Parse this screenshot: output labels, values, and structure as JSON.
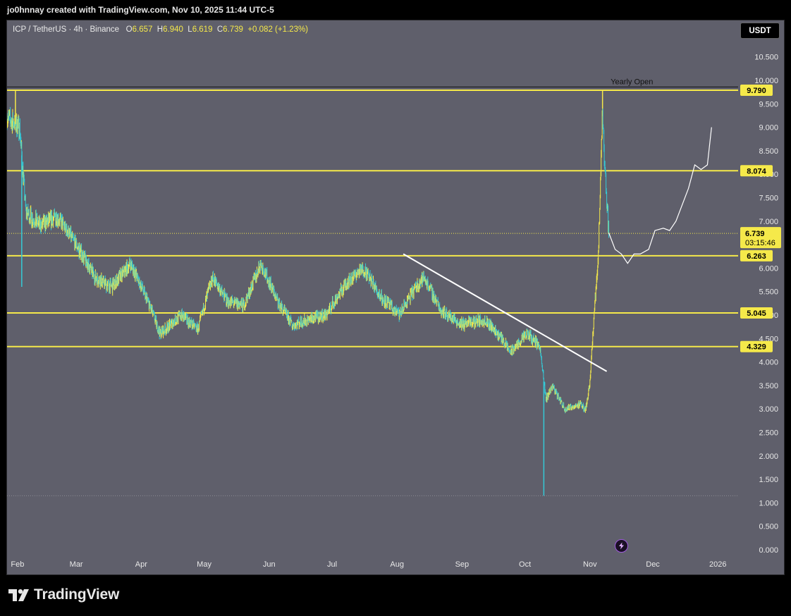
{
  "header": {
    "attribution": "jo0hnnay created with TradingView.com, Nov 10, 2025 11:44 UTC-5"
  },
  "legend": {
    "symbol": "ICP / TetherUS · 4h · Binance",
    "o_label": "O",
    "o": "6.657",
    "h_label": "H",
    "h": "6.940",
    "l_label": "L",
    "l": "6.619",
    "c_label": "C",
    "c": "6.739",
    "change": "+0.082 (+1.23%)"
  },
  "unit_button": "USDT",
  "branding": {
    "logo_text": "TradingView"
  },
  "icons": {
    "flash": "lightning-icon"
  },
  "colors": {
    "background": "#5f5f6b",
    "level_line": "#f5e94a",
    "candle_up": "#f5e94a",
    "candle_down": "#35c9d6",
    "trendline": "#ffffff",
    "projection": "#ffffff"
  },
  "chart_data": {
    "type": "candlestick",
    "symbol": "ICP / TetherUS",
    "interval": "4h",
    "exchange": "Binance",
    "ylim": [
      0,
      11
    ],
    "y_ticks": [
      "0.000",
      "0.500",
      "1.000",
      "1.500",
      "2.000",
      "2.500",
      "3.000",
      "3.500",
      "4.000",
      "4.500",
      "5.000",
      "5.500",
      "6.000",
      "6.500",
      "7.000",
      "7.500",
      "8.000",
      "8.500",
      "9.000",
      "9.500",
      "10.000",
      "10.500"
    ],
    "y_tick_values": [
      0,
      0.5,
      1,
      1.5,
      2,
      2.5,
      3,
      3.5,
      4,
      4.5,
      5,
      5.5,
      6,
      6.5,
      7,
      7.5,
      8,
      8.5,
      9,
      9.5,
      10,
      10.5
    ],
    "x_ticks": [
      "Feb",
      "Mar",
      "Apr",
      "May",
      "Jun",
      "Jul",
      "Aug",
      "Sep",
      "Oct",
      "Nov",
      "Dec",
      "2026"
    ],
    "x_tick_dates": [
      "2025-02-01",
      "2025-03-01",
      "2025-04-01",
      "2025-05-01",
      "2025-06-01",
      "2025-07-01",
      "2025-08-01",
      "2025-09-01",
      "2025-10-01",
      "2025-11-01",
      "2025-12-01",
      "2026-01-01"
    ],
    "x_range": [
      "2025-01-27",
      "2026-01-10"
    ],
    "price_path": [
      {
        "date": "2025-01-27",
        "value": 9.2
      },
      {
        "date": "2025-02-02",
        "value": 9.0
      },
      {
        "date": "2025-02-05",
        "value": 7.2
      },
      {
        "date": "2025-02-12",
        "value": 6.9
      },
      {
        "date": "2025-02-20",
        "value": 7.1
      },
      {
        "date": "2025-03-01",
        "value": 6.5
      },
      {
        "date": "2025-03-10",
        "value": 5.8
      },
      {
        "date": "2025-03-18",
        "value": 5.6
      },
      {
        "date": "2025-03-27",
        "value": 6.1
      },
      {
        "date": "2025-04-05",
        "value": 5.2
      },
      {
        "date": "2025-04-10",
        "value": 4.6
      },
      {
        "date": "2025-04-20",
        "value": 5.0
      },
      {
        "date": "2025-04-28",
        "value": 4.7
      },
      {
        "date": "2025-05-05",
        "value": 5.8
      },
      {
        "date": "2025-05-12",
        "value": 5.3
      },
      {
        "date": "2025-05-20",
        "value": 5.2
      },
      {
        "date": "2025-05-28",
        "value": 6.1
      },
      {
        "date": "2025-06-05",
        "value": 5.3
      },
      {
        "date": "2025-06-12",
        "value": 4.8
      },
      {
        "date": "2025-06-20",
        "value": 4.9
      },
      {
        "date": "2025-06-28",
        "value": 5.0
      },
      {
        "date": "2025-07-08",
        "value": 5.7
      },
      {
        "date": "2025-07-16",
        "value": 6.0
      },
      {
        "date": "2025-07-24",
        "value": 5.4
      },
      {
        "date": "2025-08-02",
        "value": 5.0
      },
      {
        "date": "2025-08-10",
        "value": 5.6
      },
      {
        "date": "2025-08-14",
        "value": 5.8
      },
      {
        "date": "2025-08-22",
        "value": 5.1
      },
      {
        "date": "2025-09-01",
        "value": 4.8
      },
      {
        "date": "2025-09-12",
        "value": 4.9
      },
      {
        "date": "2025-09-20",
        "value": 4.5
      },
      {
        "date": "2025-09-24",
        "value": 4.2
      },
      {
        "date": "2025-10-02",
        "value": 4.6
      },
      {
        "date": "2025-10-08",
        "value": 4.35
      },
      {
        "date": "2025-10-11",
        "value": 3.2
      },
      {
        "date": "2025-10-14",
        "value": 3.5
      },
      {
        "date": "2025-10-20",
        "value": 3.0
      },
      {
        "date": "2025-10-27",
        "value": 3.1
      },
      {
        "date": "2025-10-30",
        "value": 3.0
      },
      {
        "date": "2025-11-01",
        "value": 3.6
      },
      {
        "date": "2025-11-03",
        "value": 5.0
      },
      {
        "date": "2025-11-05",
        "value": 6.3
      },
      {
        "date": "2025-11-07",
        "value": 9.4
      },
      {
        "date": "2025-11-08",
        "value": 8.2
      },
      {
        "date": "2025-11-10",
        "value": 6.739
      }
    ],
    "notable_wicks": [
      {
        "date": "2025-01-31",
        "high": 9.8
      },
      {
        "date": "2025-02-03",
        "low": 5.6
      },
      {
        "date": "2025-10-10",
        "low": 1.15
      },
      {
        "date": "2025-11-07",
        "high": 9.79
      }
    ],
    "horizontal_levels": [
      {
        "value": 9.79,
        "label": "9.790"
      },
      {
        "value": 8.074,
        "label": "8.074"
      },
      {
        "value": 6.263,
        "label": "6.263"
      },
      {
        "value": 5.045,
        "label": "5.045"
      },
      {
        "value": 4.329,
        "label": "4.329"
      }
    ],
    "yearly_open": {
      "value": 9.86,
      "label": "Yearly Open"
    },
    "current_price": {
      "value": 6.739,
      "label": "6.739",
      "countdown": "03:15:46"
    },
    "low_marker": {
      "value": 1.15
    },
    "trendline": {
      "start": {
        "date": "2025-08-04",
        "value": 6.3
      },
      "end": {
        "date": "2025-11-09",
        "value": 3.8
      }
    },
    "projection_path": [
      {
        "date": "2025-11-10",
        "value": 6.75
      },
      {
        "date": "2025-11-13",
        "value": 6.4
      },
      {
        "date": "2025-11-16",
        "value": 6.3
      },
      {
        "date": "2025-11-19",
        "value": 6.1
      },
      {
        "date": "2025-11-22",
        "value": 6.3
      },
      {
        "date": "2025-11-25",
        "value": 6.3
      },
      {
        "date": "2025-11-29",
        "value": 6.4
      },
      {
        "date": "2025-12-02",
        "value": 6.8
      },
      {
        "date": "2025-12-06",
        "value": 6.85
      },
      {
        "date": "2025-12-09",
        "value": 6.8
      },
      {
        "date": "2025-12-12",
        "value": 7.0
      },
      {
        "date": "2025-12-18",
        "value": 7.7
      },
      {
        "date": "2025-12-21",
        "value": 8.2
      },
      {
        "date": "2025-12-24",
        "value": 8.1
      },
      {
        "date": "2025-12-27",
        "value": 8.2
      },
      {
        "date": "2025-12-29",
        "value": 9.0
      }
    ]
  }
}
